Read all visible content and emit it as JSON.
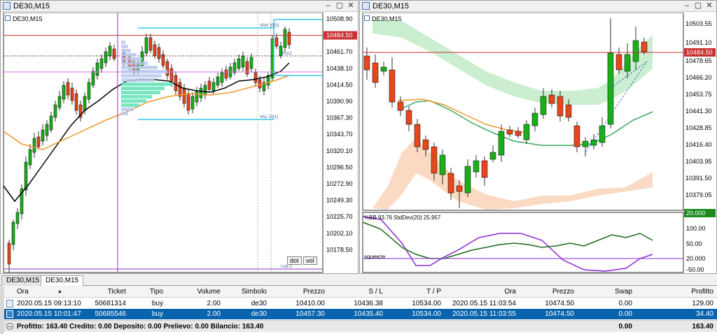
{
  "left_window": {
    "title": "DE30,M15",
    "chart_label": "DE30,M15",
    "price_ticks": [
      "10508.90",
      "10484.50",
      "10461.70",
      "10438.10",
      "10414.50",
      "10390.90",
      "10367.30",
      "10343.70",
      "10320.10",
      "10296.50",
      "10272.90",
      "10249.30",
      "10225.70",
      "10202.10",
      "10178.50"
    ],
    "current_price": "10484.50",
    "profile_labels": {
      "vah": "VAH 10(2)",
      "poc": "Poc1",
      "val": "VAL 10(1)",
      "low": "Low 1"
    },
    "buttons": {
      "dot": "dot",
      "vol": "vol"
    }
  },
  "right_window": {
    "title": "DE30,M15",
    "chart_label": "DE30,M15",
    "price_ticks": [
      "10503.55",
      "10491.10",
      "10484.50",
      "10478.65",
      "10466.20",
      "10453.75",
      "10441.30",
      "10428.85",
      "10416.40",
      "10403.95",
      "10391.50",
      "10379.05"
    ],
    "current_price": "10484.50",
    "indicator_label": "%BB 93.76  StdDev(20) 25.957",
    "indicator_scale": [
      "20.000",
      "100.00",
      "50.00",
      "20.000",
      "-50.00"
    ],
    "squeeze_label": "squeeze"
  },
  "tabs": [
    {
      "label": "DE30,M15",
      "active": false
    },
    {
      "label": "DE30,M15",
      "active": true
    }
  ],
  "terminal": {
    "columns": [
      "Ora",
      "Ticket",
      "Tipo",
      "Volume",
      "Simbolo",
      "Prezzo",
      "S / L",
      "T / P",
      "Ora",
      "Prezzo",
      "Swap",
      "Profitto"
    ],
    "rows": [
      {
        "ora": "2020.05.15 09:13:10",
        "ticket": "50681314",
        "tipo": "buy",
        "volume": "2.00",
        "simbolo": "de30",
        "prezzo": "10410.00",
        "sl": "10436.38",
        "tp": "10534.00",
        "ora2": "2020.05.15 11:03:54",
        "prezzo2": "10474.50",
        "swap": "0.00",
        "profitto": "129.00"
      },
      {
        "ora": "2020.05.15 10:01:47",
        "ticket": "50685546",
        "tipo": "buy",
        "volume": "2.00",
        "simbolo": "de30",
        "prezzo": "10457.30",
        "sl": "10435.40",
        "tp": "10534.00",
        "ora2": "2020.05.15 11:03:55",
        "prezzo2": "10474.50",
        "swap": "0.00",
        "profitto": "34.40"
      }
    ],
    "footer": {
      "summary": "Profitto: 163.40  Credito: 0.00  Deposito: 0.00  Prelievo: 0.00  Bilancio: 163.40",
      "swap": "0.00",
      "profit": "163.40"
    }
  },
  "colors": {
    "bull": "#1ab01a",
    "bear": "#e8461c",
    "ma_black": "#000000",
    "ma_orange": "#f0962a",
    "accent_blue": "#0a64ad"
  }
}
